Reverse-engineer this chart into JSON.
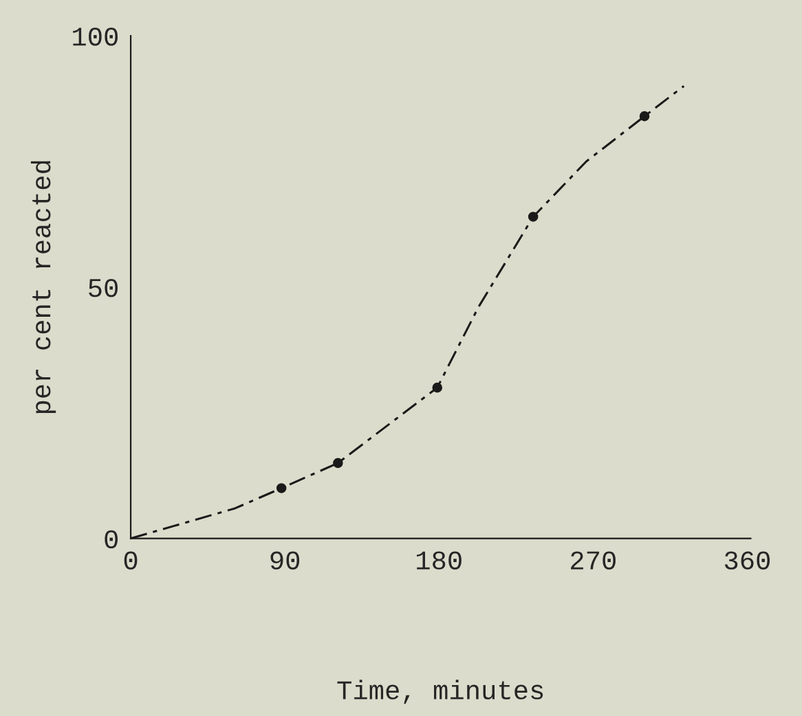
{
  "chart_data": {
    "type": "line",
    "xlabel": "Time, minutes",
    "ylabel": "per cent reacted",
    "series": [
      {
        "color": "#1a1a1a",
        "line_style": "dashed",
        "marker": "none",
        "x": [
          0,
          61,
          88,
          121,
          179,
          203,
          235,
          266,
          300,
          323
        ],
        "values": [
          0,
          6,
          10,
          15,
          30,
          46,
          64,
          75,
          84,
          90
        ]
      },
      {
        "type": "scatter",
        "color": "#1a1a1a",
        "marker": "circle",
        "x": [
          88,
          121,
          179,
          235,
          300
        ],
        "values": [
          10,
          15,
          30,
          64,
          84
        ]
      }
    ],
    "xlim": [
      0,
      362
    ],
    "ylim": [
      0,
      100
    ],
    "xticks": [
      0,
      90,
      180,
      270,
      360
    ],
    "yticks": [
      0,
      50,
      100
    ],
    "grid": false,
    "legend": false
  }
}
